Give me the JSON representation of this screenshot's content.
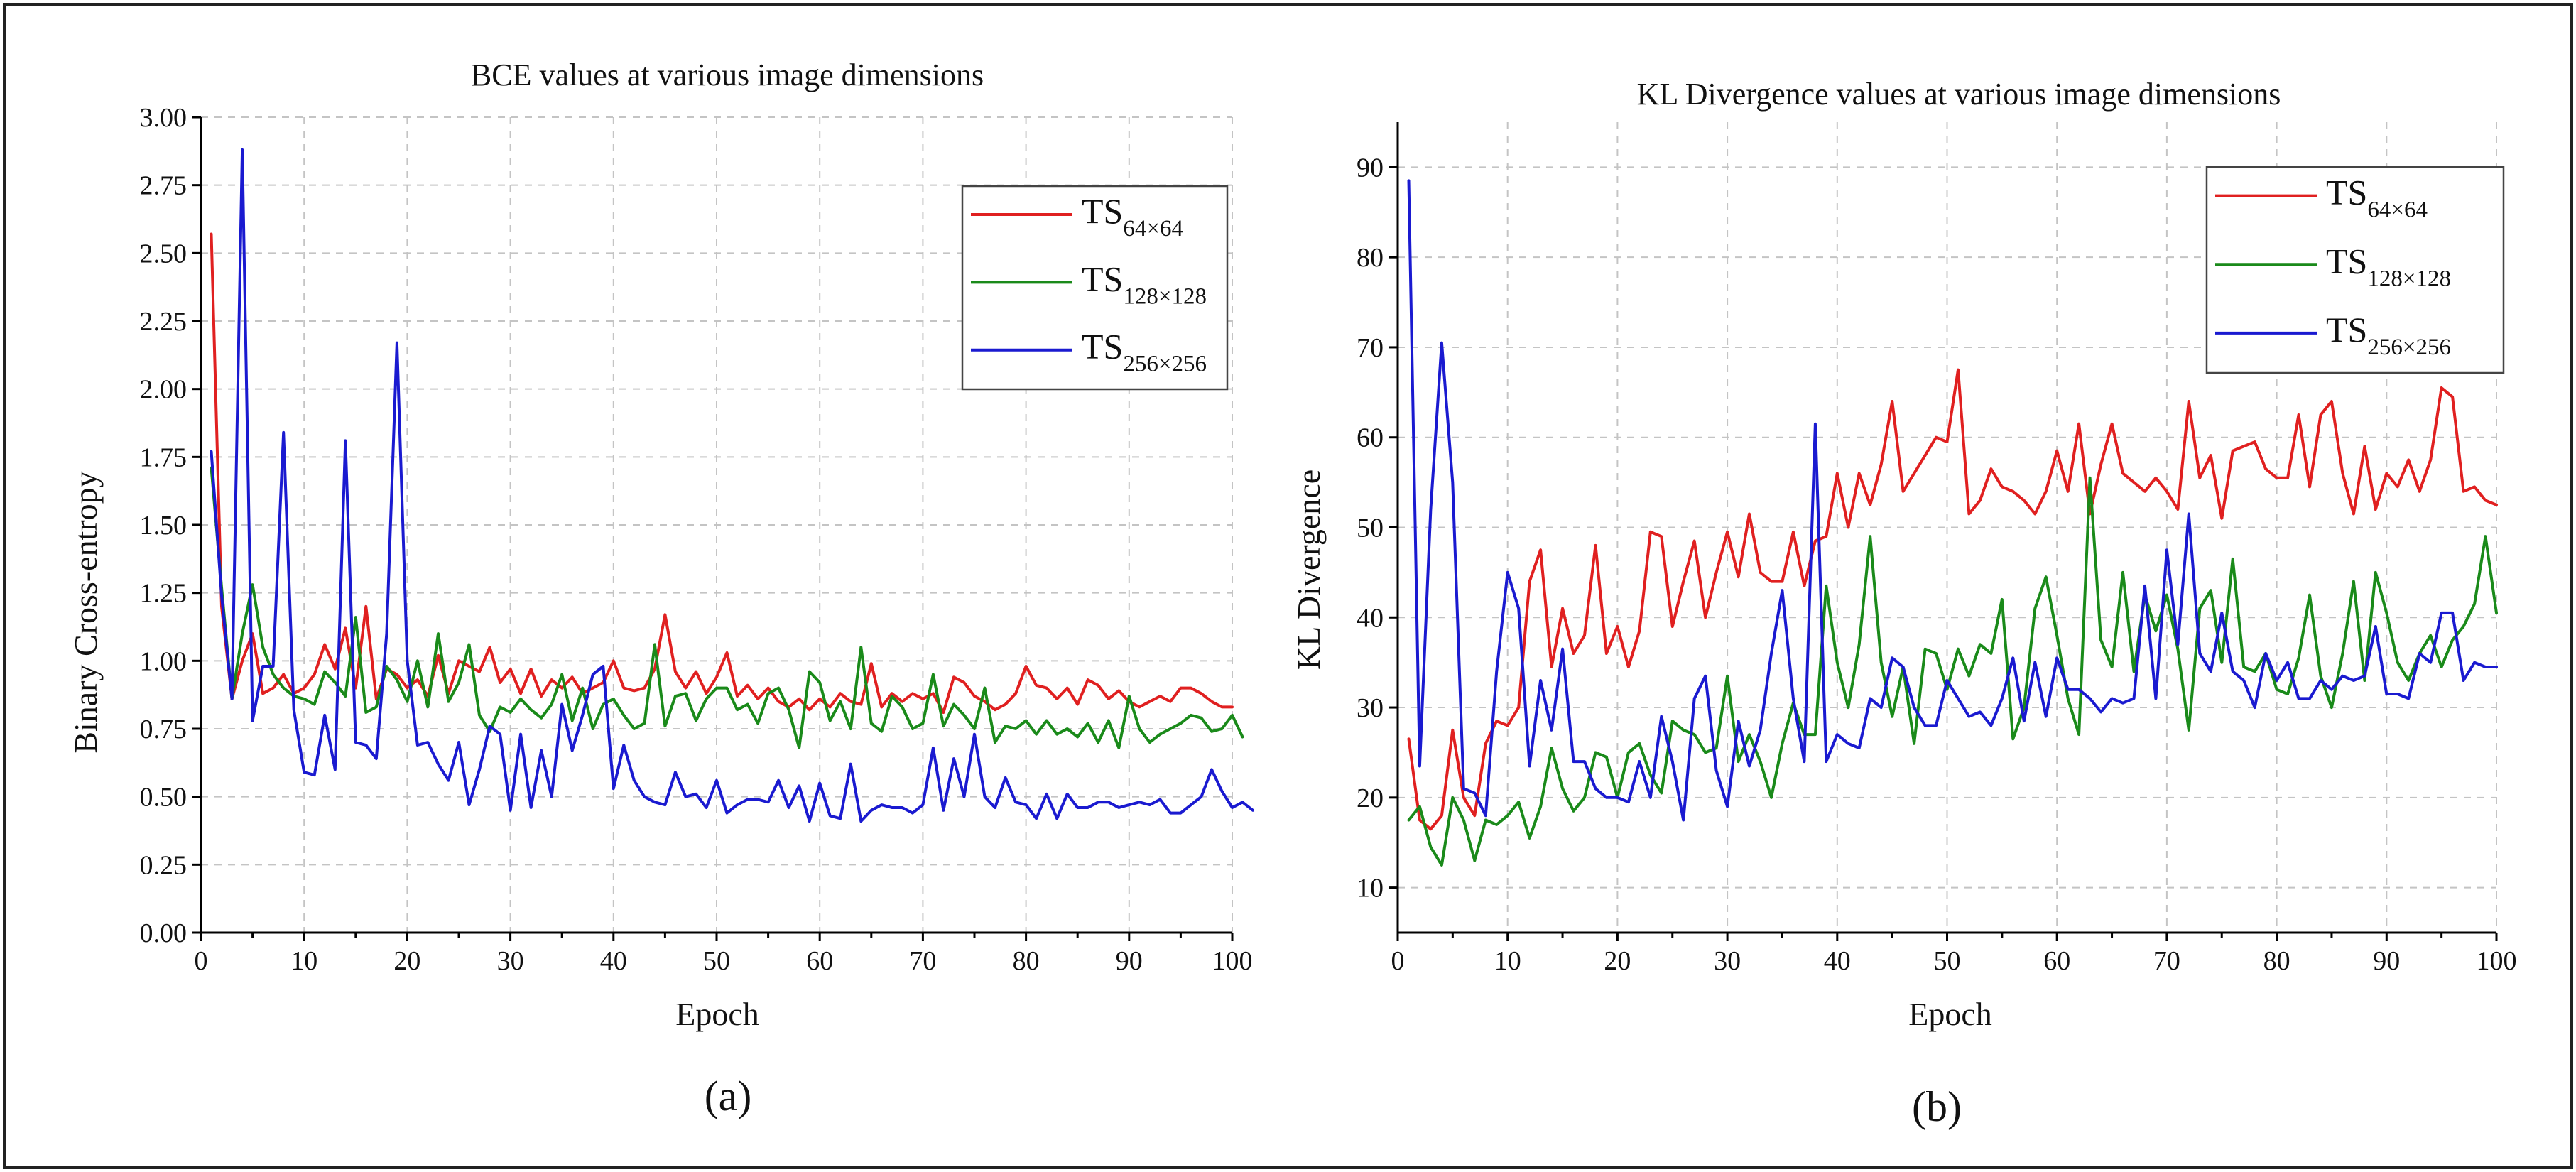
{
  "colors": {
    "ts64": "#e02020",
    "ts128": "#1a8a1a",
    "ts256": "#1a1ad0"
  },
  "chart_data": [
    {
      "type": "line",
      "panel_label": "(a)",
      "title": "BCE values at various image dimensions",
      "xlabel": "Epoch",
      "ylabel": "Binary Cross-entropy",
      "xlim": [
        0,
        100
      ],
      "ylim": [
        0,
        3
      ],
      "xticks": [
        0,
        10,
        20,
        30,
        40,
        50,
        60,
        70,
        80,
        90,
        100
      ],
      "yticks": [
        "0.00",
        "0.25",
        "0.50",
        "0.75",
        "1.00",
        "1.25",
        "1.50",
        "1.75",
        "2.00",
        "2.25",
        "2.50",
        "2.75",
        "3.00"
      ],
      "grid": true,
      "legend": "top-right",
      "series": [
        {
          "key": "ts64",
          "name": "TS",
          "sub": "64×64",
          "values": [
            2.57,
            1.2,
            0.86,
            1.0,
            1.1,
            0.88,
            0.9,
            0.95,
            0.88,
            0.9,
            0.95,
            1.06,
            0.97,
            1.12,
            0.9,
            1.2,
            0.86,
            0.97,
            0.95,
            0.9,
            0.93,
            0.87,
            1.02,
            0.88,
            1.0,
            0.98,
            0.96,
            1.05,
            0.92,
            0.97,
            0.88,
            0.97,
            0.87,
            0.93,
            0.9,
            0.94,
            0.88,
            0.9,
            0.92,
            1.0,
            0.9,
            0.89,
            0.9,
            0.97,
            1.17,
            0.96,
            0.9,
            0.96,
            0.88,
            0.94,
            1.03,
            0.87,
            0.91,
            0.86,
            0.9,
            0.85,
            0.83,
            0.86,
            0.82,
            0.86,
            0.83,
            0.88,
            0.85,
            0.84,
            0.99,
            0.83,
            0.88,
            0.85,
            0.88,
            0.86,
            0.88,
            0.81,
            0.94,
            0.92,
            0.87,
            0.85,
            0.82,
            0.84,
            0.88,
            0.98,
            0.91,
            0.9,
            0.86,
            0.9,
            0.84,
            0.93,
            0.91,
            0.86,
            0.89,
            0.85,
            0.83,
            0.85,
            0.87,
            0.85,
            0.9,
            0.9,
            0.88,
            0.85,
            0.83,
            0.83
          ]
        },
        {
          "key": "ts128",
          "name": "TS",
          "sub": "128×128",
          "values": [
            1.71,
            1.27,
            0.86,
            1.1,
            1.28,
            1.05,
            0.95,
            0.9,
            0.87,
            0.86,
            0.84,
            0.96,
            0.92,
            0.87,
            1.16,
            0.81,
            0.83,
            0.98,
            0.93,
            0.85,
            1.0,
            0.83,
            1.1,
            0.85,
            0.92,
            1.06,
            0.8,
            0.74,
            0.83,
            0.81,
            0.86,
            0.82,
            0.79,
            0.84,
            0.95,
            0.78,
            0.9,
            0.75,
            0.84,
            0.86,
            0.8,
            0.75,
            0.77,
            1.06,
            0.76,
            0.87,
            0.88,
            0.78,
            0.86,
            0.9,
            0.9,
            0.82,
            0.84,
            0.77,
            0.88,
            0.9,
            0.82,
            0.68,
            0.96,
            0.92,
            0.78,
            0.85,
            0.75,
            1.05,
            0.77,
            0.74,
            0.87,
            0.83,
            0.75,
            0.77,
            0.95,
            0.76,
            0.84,
            0.8,
            0.75,
            0.9,
            0.7,
            0.76,
            0.75,
            0.78,
            0.73,
            0.78,
            0.73,
            0.75,
            0.72,
            0.77,
            0.7,
            0.78,
            0.68,
            0.87,
            0.75,
            0.7,
            0.73,
            0.75,
            0.77,
            0.8,
            0.79,
            0.74,
            0.75,
            0.8,
            0.72
          ]
        },
        {
          "key": "ts256",
          "name": "TS",
          "sub": "256×256",
          "values": [
            1.77,
            1.24,
            0.86,
            2.88,
            0.78,
            0.98,
            0.98,
            1.84,
            0.82,
            0.59,
            0.58,
            0.8,
            0.6,
            1.81,
            0.7,
            0.69,
            0.64,
            1.1,
            2.17,
            1.0,
            0.69,
            0.7,
            0.62,
            0.56,
            0.7,
            0.47,
            0.6,
            0.76,
            0.73,
            0.45,
            0.73,
            0.46,
            0.67,
            0.5,
            0.84,
            0.67,
            0.8,
            0.95,
            0.98,
            0.53,
            0.69,
            0.56,
            0.5,
            0.48,
            0.47,
            0.59,
            0.5,
            0.51,
            0.46,
            0.56,
            0.44,
            0.47,
            0.49,
            0.49,
            0.48,
            0.56,
            0.46,
            0.54,
            0.41,
            0.55,
            0.43,
            0.42,
            0.62,
            0.41,
            0.45,
            0.47,
            0.46,
            0.46,
            0.44,
            0.47,
            0.68,
            0.45,
            0.64,
            0.5,
            0.73,
            0.5,
            0.46,
            0.57,
            0.48,
            0.47,
            0.42,
            0.51,
            0.42,
            0.51,
            0.46,
            0.46,
            0.48,
            0.48,
            0.46,
            0.47,
            0.48,
            0.47,
            0.49,
            0.44,
            0.44,
            0.47,
            0.5,
            0.6,
            0.52,
            0.46,
            0.48,
            0.45
          ]
        }
      ]
    },
    {
      "type": "line",
      "panel_label": "(b)",
      "title": "KL Divergence values at various image dimensions",
      "xlabel": "Epoch",
      "ylabel": "KL Divergence",
      "xlim": [
        0,
        100
      ],
      "ylim": [
        5,
        95
      ],
      "xticks": [
        0,
        10,
        20,
        30,
        40,
        50,
        60,
        70,
        80,
        90,
        100
      ],
      "yticks": [
        "10",
        "20",
        "30",
        "40",
        "50",
        "60",
        "70",
        "80",
        "90"
      ],
      "grid": true,
      "legend": "top-right",
      "series": [
        {
          "key": "ts64",
          "name": "TS",
          "sub": "64×64",
          "values": [
            26.5,
            17.5,
            16.5,
            18,
            27.5,
            20,
            18,
            26,
            28.5,
            28,
            30,
            44,
            47.5,
            34.5,
            41,
            36,
            38,
            48,
            36,
            39,
            34.5,
            38.5,
            49.5,
            49,
            39,
            44,
            48.5,
            40,
            45,
            49.5,
            44.5,
            51.5,
            45,
            44,
            44,
            49.5,
            43.5,
            48.5,
            49,
            56,
            50,
            56,
            52.5,
            57,
            64,
            54,
            56,
            58,
            60,
            59.5,
            67.5,
            51.5,
            53,
            56.5,
            54.5,
            54,
            53,
            51.5,
            54,
            58.5,
            54,
            61.5,
            51.5,
            57,
            61.5,
            56,
            55,
            54,
            55.5,
            54,
            52,
            64,
            55.5,
            58,
            51,
            58.5,
            59,
            59.5,
            56.5,
            55.5,
            55.5,
            62.5,
            54.5,
            62.5,
            64,
            56,
            51.5,
            59,
            52,
            56,
            54.5,
            57.5,
            54,
            57.5,
            65.5,
            64.5,
            54,
            54.5,
            53,
            52.5
          ]
        },
        {
          "key": "ts128",
          "name": "TS",
          "sub": "128×128",
          "values": [
            17.5,
            19,
            14.5,
            12.5,
            20,
            17.5,
            13,
            17.5,
            17,
            18,
            19.5,
            15.5,
            19,
            25.5,
            21,
            18.5,
            20,
            25,
            24.5,
            20,
            25,
            26,
            22.5,
            20.5,
            28.5,
            27.5,
            27,
            25,
            25.5,
            33.5,
            24,
            27,
            24,
            20,
            26,
            30.5,
            27,
            27,
            43.5,
            35,
            30,
            37,
            49,
            35,
            29,
            34.5,
            26,
            36.5,
            36,
            32,
            36.5,
            33.5,
            37,
            36,
            42,
            26.5,
            30,
            41,
            44.5,
            38,
            31,
            27,
            55.5,
            37.5,
            34.5,
            45,
            34,
            42.5,
            38.5,
            42.5,
            36.5,
            27.5,
            41,
            43,
            35,
            46.5,
            34.5,
            34,
            36,
            32,
            31.5,
            35.5,
            42.5,
            33.5,
            30,
            36,
            44,
            33,
            45,
            40.5,
            35,
            33,
            36,
            38,
            34.5,
            37.5,
            39,
            41.5,
            49,
            40.5
          ]
        },
        {
          "key": "ts256",
          "name": "TS",
          "sub": "256×256",
          "values": [
            88.5,
            23.5,
            52,
            70.5,
            55,
            21,
            20.5,
            18,
            34,
            45,
            41,
            23.5,
            33,
            27.5,
            36.5,
            24,
            24,
            21,
            20,
            20,
            19.5,
            24,
            20,
            29,
            24,
            17.5,
            31,
            33.5,
            23,
            19,
            28.5,
            23.5,
            27.5,
            36,
            43,
            31,
            24,
            61.5,
            24,
            27,
            26,
            25.5,
            31,
            30,
            35.5,
            34.5,
            30,
            28,
            28,
            33,
            31,
            29,
            29.5,
            28,
            31,
            35.5,
            28.5,
            35,
            29,
            35.5,
            32,
            32,
            31,
            29.5,
            31,
            30.5,
            31,
            43.5,
            31,
            47.5,
            37,
            51.5,
            36,
            34,
            40.5,
            34,
            33,
            30,
            36,
            33,
            35,
            31,
            31,
            33,
            32,
            33.5,
            33,
            33.5,
            39,
            31.5,
            31.5,
            31,
            36,
            35,
            40.5,
            40.5,
            33,
            35,
            34.5,
            34.5
          ]
        }
      ]
    }
  ]
}
